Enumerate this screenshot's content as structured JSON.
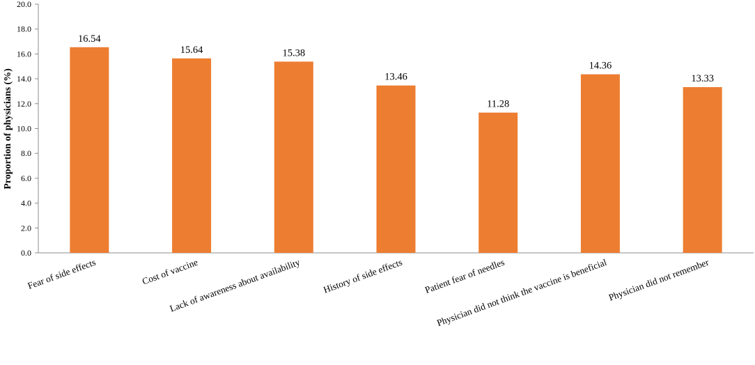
{
  "chart_data": {
    "type": "bar",
    "title": "",
    "xlabel": "",
    "ylabel": "Proportion of physicians (%)",
    "ylim": [
      0,
      20
    ],
    "yticks": [
      "0.0",
      "2.0",
      "4.0",
      "6.0",
      "8.0",
      "10.0",
      "12.0",
      "14.0",
      "16.0",
      "18.0",
      "20.0"
    ],
    "grid": false,
    "legend": "none",
    "bar_color": "#ED7D31",
    "categories": [
      "Fear of side effects",
      "Cost of vaccine",
      "Lack of awareness about availability",
      "History of side effects",
      "Patient fear of needles",
      "Physician did not think the vaccine is beneficial",
      "Physician did not remember"
    ],
    "values": [
      16.54,
      15.64,
      15.38,
      13.46,
      11.28,
      14.36,
      13.33
    ],
    "value_labels": [
      "16.54",
      "15.64",
      "15.38",
      "13.46",
      "11.28",
      "14.36",
      "13.33"
    ]
  }
}
